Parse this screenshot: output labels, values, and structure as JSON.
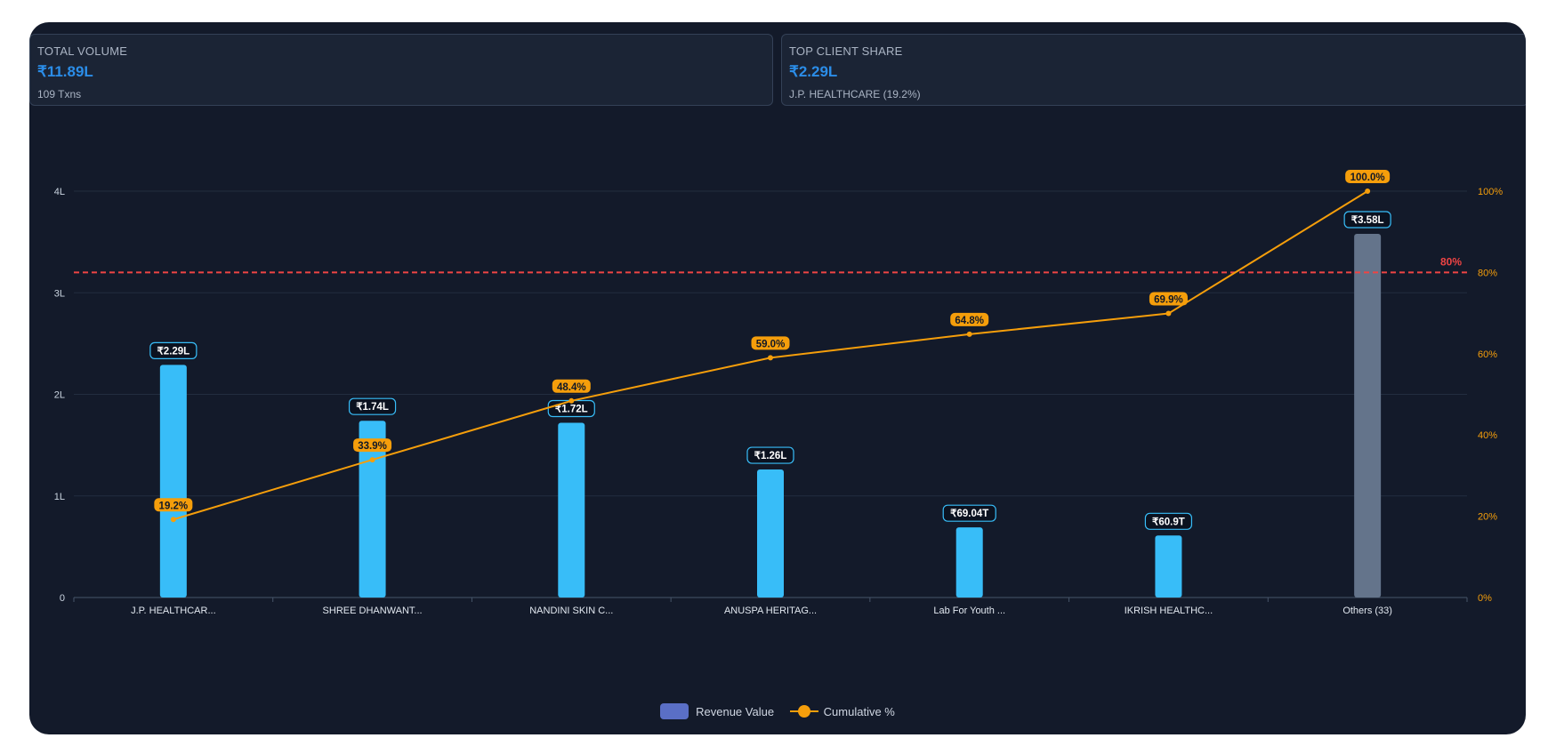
{
  "kpis": [
    {
      "label": "TOTAL VOLUME",
      "value": "₹11.89L",
      "sub": "109 Txns"
    },
    {
      "label": "TOP CLIENT SHARE",
      "value": "₹2.29L",
      "sub": "J.P. HEALTHCARE (19.2%)"
    }
  ],
  "legend": {
    "bar_label": "Revenue Value",
    "line_label": "Cumulative %"
  },
  "colors": {
    "bar": "#38bdf8",
    "others_bar": "#64748b",
    "line": "#f59e0b",
    "threshold": "#ef4444",
    "axis_text": "#cbd5e1",
    "right_axis_text": "#f59e0b"
  },
  "chart_data": {
    "type": "bar",
    "categories": [
      "J.P. HEALTHCAR...",
      "SHREE DHANWANT...",
      "NANDINI SKIN C...",
      "ANUSPA HERITAG...",
      "Lab For Youth ...",
      "IKRISH HEALTHC...",
      "Others (33)"
    ],
    "series": [
      {
        "name": "Revenue Value",
        "type": "bar",
        "axis": "left",
        "values": [
          2.29,
          1.74,
          1.72,
          1.26,
          0.69,
          0.61,
          3.58
        ],
        "labels": [
          "₹2.29L",
          "₹1.74L",
          "₹1.72L",
          "₹1.26L",
          "₹69.04T",
          "₹60.9T",
          "₹3.58L"
        ]
      },
      {
        "name": "Cumulative %",
        "type": "line",
        "axis": "right",
        "values": [
          19.2,
          33.9,
          48.4,
          59.0,
          64.8,
          69.9,
          100.0
        ],
        "labels": [
          "19.2%",
          "33.9%",
          "48.4%",
          "59.0%",
          "64.8%",
          "69.9%",
          "100.0%"
        ]
      }
    ],
    "y_left": {
      "min": 0,
      "max": 4,
      "ticks": [
        0,
        1,
        2,
        3,
        4
      ],
      "tick_labels": [
        "0",
        "1L",
        "2L",
        "3L",
        "4L"
      ]
    },
    "y_right": {
      "min": 0,
      "max": 100,
      "ticks": [
        0,
        20,
        40,
        60,
        80,
        100
      ],
      "tick_labels": [
        "0%",
        "20%",
        "40%",
        "60%",
        "80%",
        "100%"
      ]
    },
    "threshold": {
      "value": 80,
      "axis": "right",
      "label": "80%"
    },
    "grid": true,
    "legend_position": "bottom"
  }
}
